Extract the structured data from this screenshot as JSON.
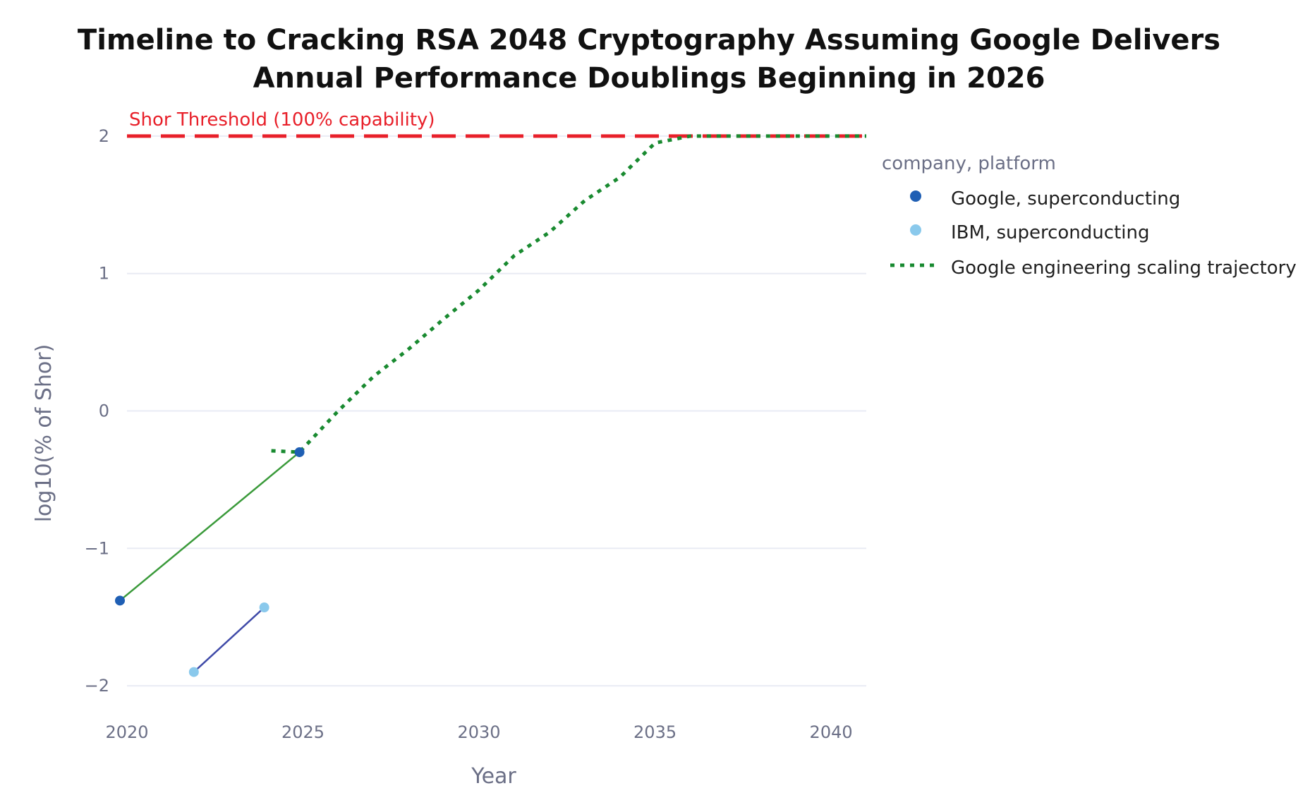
{
  "chart_data": {
    "type": "line",
    "title_line1": "Timeline to Cracking RSA 2048 Cryptography Assuming Google Delivers",
    "title_line2": "Annual Performance Doublings Beginning in 2026",
    "xlabel": "Year",
    "ylabel": "log10(% of Shor)",
    "xlim": [
      2020,
      2041
    ],
    "ylim": [
      -2.4,
      2.4
    ],
    "x_ticks": [
      2020,
      2025,
      2030,
      2035,
      2040
    ],
    "y_ticks": [
      -2,
      -1,
      0,
      1,
      2
    ],
    "y_tick_labels": [
      "−2",
      "−1",
      "0",
      "1",
      "2"
    ],
    "grid": true,
    "threshold": {
      "label": "Shor Threshold (100% capability)",
      "y": 2,
      "color": "#e8202a"
    },
    "legend": {
      "title": "company, platform",
      "position": "top-right",
      "entries": [
        {
          "label": "Google, superconducting",
          "color": "#1f5fb4",
          "style": "marker"
        },
        {
          "label": "IBM, superconducting",
          "color": "#8ac9ec",
          "style": "marker"
        },
        {
          "label": "Google engineering scaling trajectory",
          "color": "#198a30",
          "style": "dotted"
        }
      ]
    },
    "series": [
      {
        "name": "Google, superconducting",
        "color": "#1f5fb4",
        "line_color": "#3a9a3a",
        "x": [
          2019.8,
          2024.9
        ],
        "y": [
          -1.38,
          -0.3
        ]
      },
      {
        "name": "IBM, superconducting",
        "color": "#8ac9ec",
        "line_color": "#3f4aa8",
        "x": [
          2021.9,
          2023.9
        ],
        "y": [
          -1.9,
          -1.43
        ]
      },
      {
        "name": "Google engineering scaling trajectory",
        "color": "#198a30",
        "x": [
          2024.1,
          2024.9,
          2026,
          2027,
          2028,
          2029,
          2030,
          2031,
          2032,
          2033,
          2034,
          2035,
          2036,
          2041
        ],
        "y": [
          -0.29,
          -0.3,
          0.0,
          0.25,
          0.45,
          0.67,
          0.88,
          1.13,
          1.3,
          1.53,
          1.7,
          1.95,
          2.0,
          2.0
        ]
      }
    ]
  }
}
